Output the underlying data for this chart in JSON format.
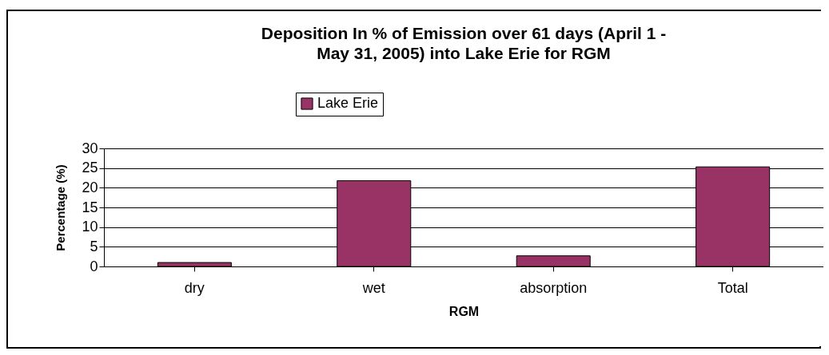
{
  "chart_data": {
    "type": "bar",
    "title": "Deposition In % of Emission over 61 days (April 1 - May 31, 2005) into Lake Erie for RGM",
    "xlabel": "RGM",
    "ylabel": "Percentage (%)",
    "categories": [
      "dry",
      "wet",
      "absorption",
      "Total"
    ],
    "series": [
      {
        "name": "Lake Erie",
        "color": "#993366",
        "values": [
          1.0,
          21.8,
          2.7,
          25.3
        ]
      }
    ],
    "ylim": [
      0,
      30
    ],
    "yticks": [
      0,
      5,
      10,
      15,
      20,
      25,
      30
    ],
    "grid": "y",
    "legend": "top"
  }
}
